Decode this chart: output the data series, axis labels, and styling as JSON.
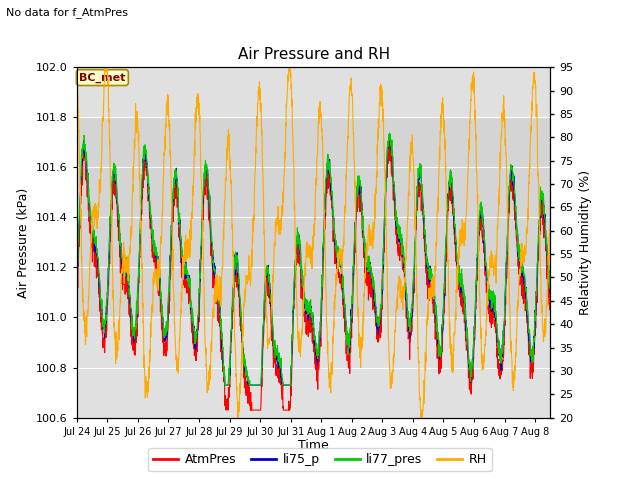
{
  "title": "Air Pressure and RH",
  "subtitle": "No data for f_AtmPres",
  "xlabel": "Time",
  "ylabel_left": "Air Pressure (kPa)",
  "ylabel_right": "Relativity Humidity (%)",
  "annotation": "BC_met",
  "left_ylim": [
    100.6,
    102.0
  ],
  "right_ylim": [
    20,
    95
  ],
  "left_yticks": [
    100.6,
    100.8,
    101.0,
    101.2,
    101.4,
    101.6,
    101.8,
    102.0
  ],
  "right_yticks": [
    20,
    25,
    30,
    35,
    40,
    45,
    50,
    55,
    60,
    65,
    70,
    75,
    80,
    85,
    90,
    95
  ],
  "colors": {
    "AtmPres": "#ff0000",
    "li75_p": "#0000cc",
    "li77_pres": "#00cc00",
    "RH": "#ffaa00"
  },
  "legend_labels": [
    "AtmPres",
    "li75_p",
    "li77_pres",
    "RH"
  ],
  "background_color": "#ffffff",
  "plot_bg_color": "#e0e0e0",
  "grid_color": "#ffffff",
  "shaded_region_light": [
    101.0,
    101.8
  ],
  "shaded_region_dark": [
    100.6,
    101.0
  ],
  "xtick_labels": [
    "Jul 24",
    "Jul 25",
    "Jul 26",
    "Jul 27",
    "Jul 28",
    "Jul 29",
    "Jul 30",
    "Jul 31",
    "Aug 1",
    "Aug 2",
    "Aug 3",
    "Aug 4",
    "Aug 5",
    "Aug 6",
    "Aug 7",
    "Aug 8"
  ],
  "linewidth": 0.8,
  "figsize": [
    6.4,
    4.8
  ],
  "dpi": 100
}
